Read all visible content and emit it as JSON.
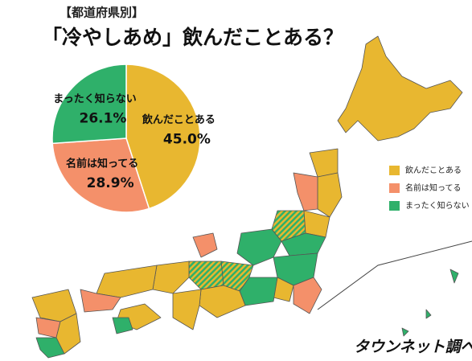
{
  "chart_data": {
    "type": "pie",
    "subtitle": "【都道府県別】",
    "title": "「冷やしあめ」飲んだことある？",
    "categories": [
      "飲んだことある",
      "名前は知ってる",
      "まったく知らない"
    ],
    "values": [
      45.0,
      28.9,
      26.1
    ],
    "value_labels": [
      "45.0%",
      "28.9%",
      "26.1%"
    ],
    "colors": [
      "#e8b730",
      "#f4906a",
      "#2fb06a"
    ],
    "legend": "right",
    "source": "タウンネット調べ"
  }
}
